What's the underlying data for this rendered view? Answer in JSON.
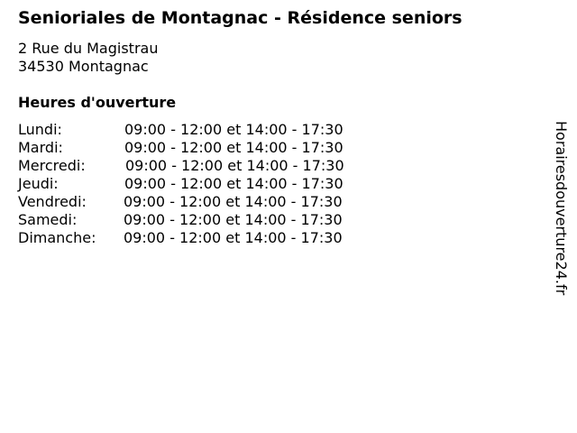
{
  "title": "Senioriales de Montagnac - Résidence seniors",
  "address": {
    "line1": "2 Rue du Magistrau",
    "line2": "34530 Montagnac"
  },
  "hours_heading": "Heures d'ouverture",
  "hours": [
    {
      "day": "Lundi:",
      "time": "09:00 - 12:00 et 14:00 - 17:30"
    },
    {
      "day": "Mardi:",
      "time": "09:00 - 12:00 et 14:00 - 17:30"
    },
    {
      "day": "Mercredi:",
      "time": "09:00 - 12:00 et 14:00 - 17:30"
    },
    {
      "day": "Jeudi:",
      "time": "09:00 - 12:00 et 14:00 - 17:30"
    },
    {
      "day": "Vendredi:",
      "time": "09:00 - 12:00 et 14:00 - 17:30"
    },
    {
      "day": "Samedi:",
      "time": "09:00 - 12:00 et 14:00 - 17:30"
    },
    {
      "day": "Dimanche:",
      "time": "09:00 - 12:00 et 14:00 - 17:30"
    }
  ],
  "watermark": "Horairesdouverture24.fr"
}
